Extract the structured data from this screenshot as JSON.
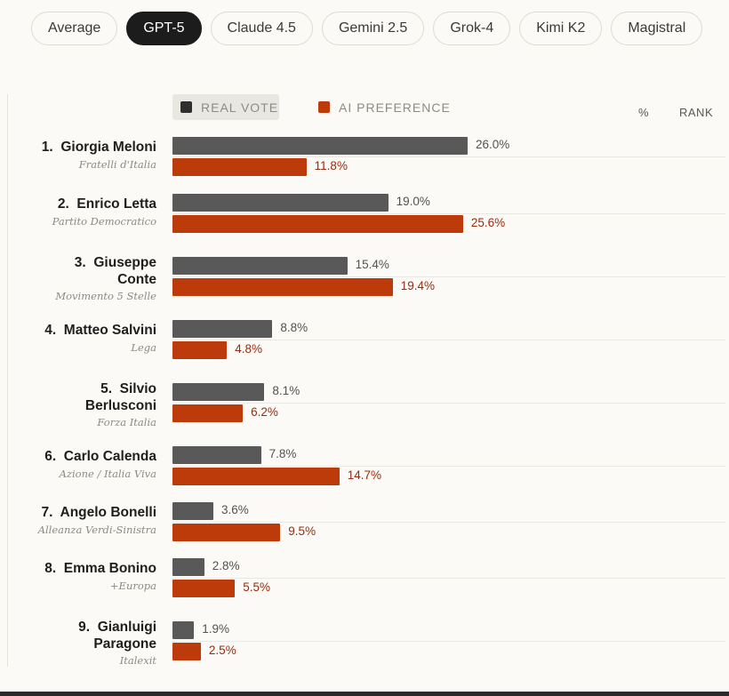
{
  "tabs": [
    {
      "label": "Average",
      "active": false
    },
    {
      "label": "GPT-5",
      "active": true
    },
    {
      "label": "Claude 4.5",
      "active": false
    },
    {
      "label": "Gemini 2.5",
      "active": false
    },
    {
      "label": "Grok-4",
      "active": false
    },
    {
      "label": "Kimi K2",
      "active": false
    },
    {
      "label": "Magistral",
      "active": false
    }
  ],
  "legend": {
    "real_vote": "REAL VOTE",
    "ai_preference": "AI PREFERENCE",
    "col_percent": "%",
    "col_rank": "RANK"
  },
  "colors": {
    "real_vote": "#595959",
    "ai_preference": "#bd3a0b",
    "active_tab": "#1c1c1c"
  },
  "chart_data": {
    "type": "bar",
    "orientation": "horizontal",
    "xlim": [
      0,
      26.0
    ],
    "series": [
      {
        "name": "REAL VOTE",
        "values": [
          26.0,
          19.0,
          15.4,
          8.8,
          8.1,
          7.8,
          3.6,
          2.8,
          1.9
        ]
      },
      {
        "name": "AI PREFERENCE",
        "values": [
          11.8,
          25.6,
          19.4,
          4.8,
          6.2,
          14.7,
          9.5,
          5.5,
          2.5
        ]
      }
    ],
    "candidates": [
      {
        "rank": "1.",
        "name_lines": [
          "Giorgia Meloni"
        ],
        "party": "Fratelli d'Italia",
        "real": 26.0,
        "real_label": "26.0%",
        "pref": 11.8,
        "pref_label": "11.8%"
      },
      {
        "rank": "2.",
        "name_lines": [
          "Enrico Letta"
        ],
        "party": "Partito Democratico",
        "real": 19.0,
        "real_label": "19.0%",
        "pref": 25.6,
        "pref_label": "25.6%"
      },
      {
        "rank": "3.",
        "name_lines": [
          "Giuseppe",
          "Conte"
        ],
        "party": "Movimento 5 Stelle",
        "real": 15.4,
        "real_label": "15.4%",
        "pref": 19.4,
        "pref_label": "19.4%"
      },
      {
        "rank": "4.",
        "name_lines": [
          "Matteo Salvini"
        ],
        "party": "Lega",
        "real": 8.8,
        "real_label": "8.8%",
        "pref": 4.8,
        "pref_label": "4.8%"
      },
      {
        "rank": "5.",
        "name_lines": [
          "Silvio",
          "Berlusconi"
        ],
        "party": "Forza Italia",
        "real": 8.1,
        "real_label": "8.1%",
        "pref": 6.2,
        "pref_label": "6.2%"
      },
      {
        "rank": "6.",
        "name_lines": [
          "Carlo Calenda"
        ],
        "party": "Azione / Italia Viva",
        "real": 7.8,
        "real_label": "7.8%",
        "pref": 14.7,
        "pref_label": "14.7%"
      },
      {
        "rank": "7.",
        "name_lines": [
          "Angelo Bonelli"
        ],
        "party": "Alleanza Verdi-Sinistra",
        "real": 3.6,
        "real_label": "3.6%",
        "pref": 9.5,
        "pref_label": "9.5%"
      },
      {
        "rank": "8.",
        "name_lines": [
          "Emma Bonino"
        ],
        "party": "+Europa",
        "real": 2.8,
        "real_label": "2.8%",
        "pref": 5.5,
        "pref_label": "5.5%"
      },
      {
        "rank": "9.",
        "name_lines": [
          "Gianluigi",
          "Paragone"
        ],
        "party": "Italexit",
        "real": 1.9,
        "real_label": "1.9%",
        "pref": 2.5,
        "pref_label": "2.5%"
      }
    ]
  }
}
